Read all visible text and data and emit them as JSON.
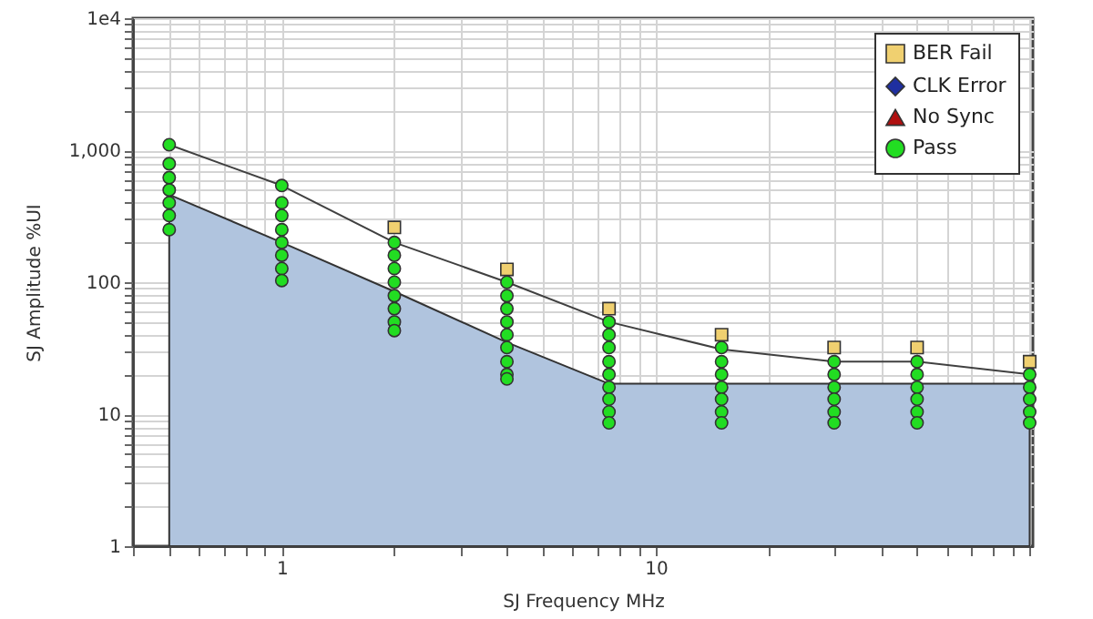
{
  "chart_data": {
    "type": "scatter",
    "xlabel": "SJ Frequency MHz",
    "ylabel": "SJ Amplitude %UI",
    "log": "xy",
    "grid": true,
    "legend": "top right",
    "xlim": [
      0.4,
      102
    ],
    "xticks": [
      1,
      10
    ],
    "ylim": [
      1,
      10000
    ],
    "yticks": [
      1,
      10,
      100,
      {
        "value": 1000,
        "label": "1,000"
      },
      {
        "value": 10000,
        "label": "1e4"
      }
    ],
    "series": [
      {
        "type": "area",
        "color": "#b0c4de",
        "x": [
          0.5,
          1,
          2,
          4,
          7.5,
          100
        ],
        "values": [
          460,
          200,
          85,
          35,
          17,
          17
        ]
      },
      {
        "type": "line",
        "color": "#404040",
        "x": [
          0.5,
          1,
          2,
          4,
          7.5,
          15,
          30,
          50,
          100
        ],
        "values": [
          1100,
          540,
          200,
          100,
          50,
          31,
          25,
          25,
          20
        ]
      },
      {
        "name": "BER Fail",
        "marker": "square",
        "color": "#f0d070",
        "x": [
          2,
          4,
          7.5,
          15,
          30,
          50,
          100
        ],
        "values": [
          260,
          125,
          63,
          40,
          32,
          32,
          25
        ]
      },
      {
        "name": "CLK Error",
        "marker": "diamond",
        "color": "#1f2fa0"
      },
      {
        "name": "No Sync",
        "marker": "triangle",
        "color": "#b01010"
      },
      {
        "name": "Pass",
        "marker": "circle",
        "color": "#22dd22",
        "x": [
          0.5,
          0.5,
          0.5,
          0.5,
          0.5,
          0.5,
          0.5,
          1,
          1,
          1,
          1,
          1,
          1,
          1,
          1,
          2,
          2,
          2,
          2,
          2,
          2,
          2,
          2,
          4,
          4,
          4,
          4,
          4,
          4,
          4,
          4,
          4,
          7.5,
          7.5,
          7.5,
          7.5,
          7.5,
          7.5,
          7.5,
          7.5,
          7.5,
          15,
          15,
          15,
          15,
          15,
          15,
          15,
          30,
          30,
          30,
          30,
          30,
          30,
          50,
          50,
          50,
          50,
          50,
          50,
          100,
          100,
          100,
          100,
          100
        ],
        "values": [
          1100,
          790,
          620,
          500,
          400,
          320,
          250,
          540,
          400,
          320,
          250,
          200,
          160,
          127,
          103,
          200,
          160,
          127,
          100,
          79,
          63,
          50,
          43,
          100,
          79,
          63,
          50,
          40,
          32,
          25,
          20,
          18.5,
          50,
          40,
          32,
          25,
          20,
          16,
          13,
          10.4,
          8.6,
          32,
          25,
          20,
          16,
          13,
          10.4,
          8.6,
          25,
          20,
          16,
          13,
          10.4,
          8.6,
          25,
          20,
          16,
          13,
          10.4,
          8.6,
          20,
          16,
          13,
          10.4,
          8.6
        ]
      }
    ]
  }
}
